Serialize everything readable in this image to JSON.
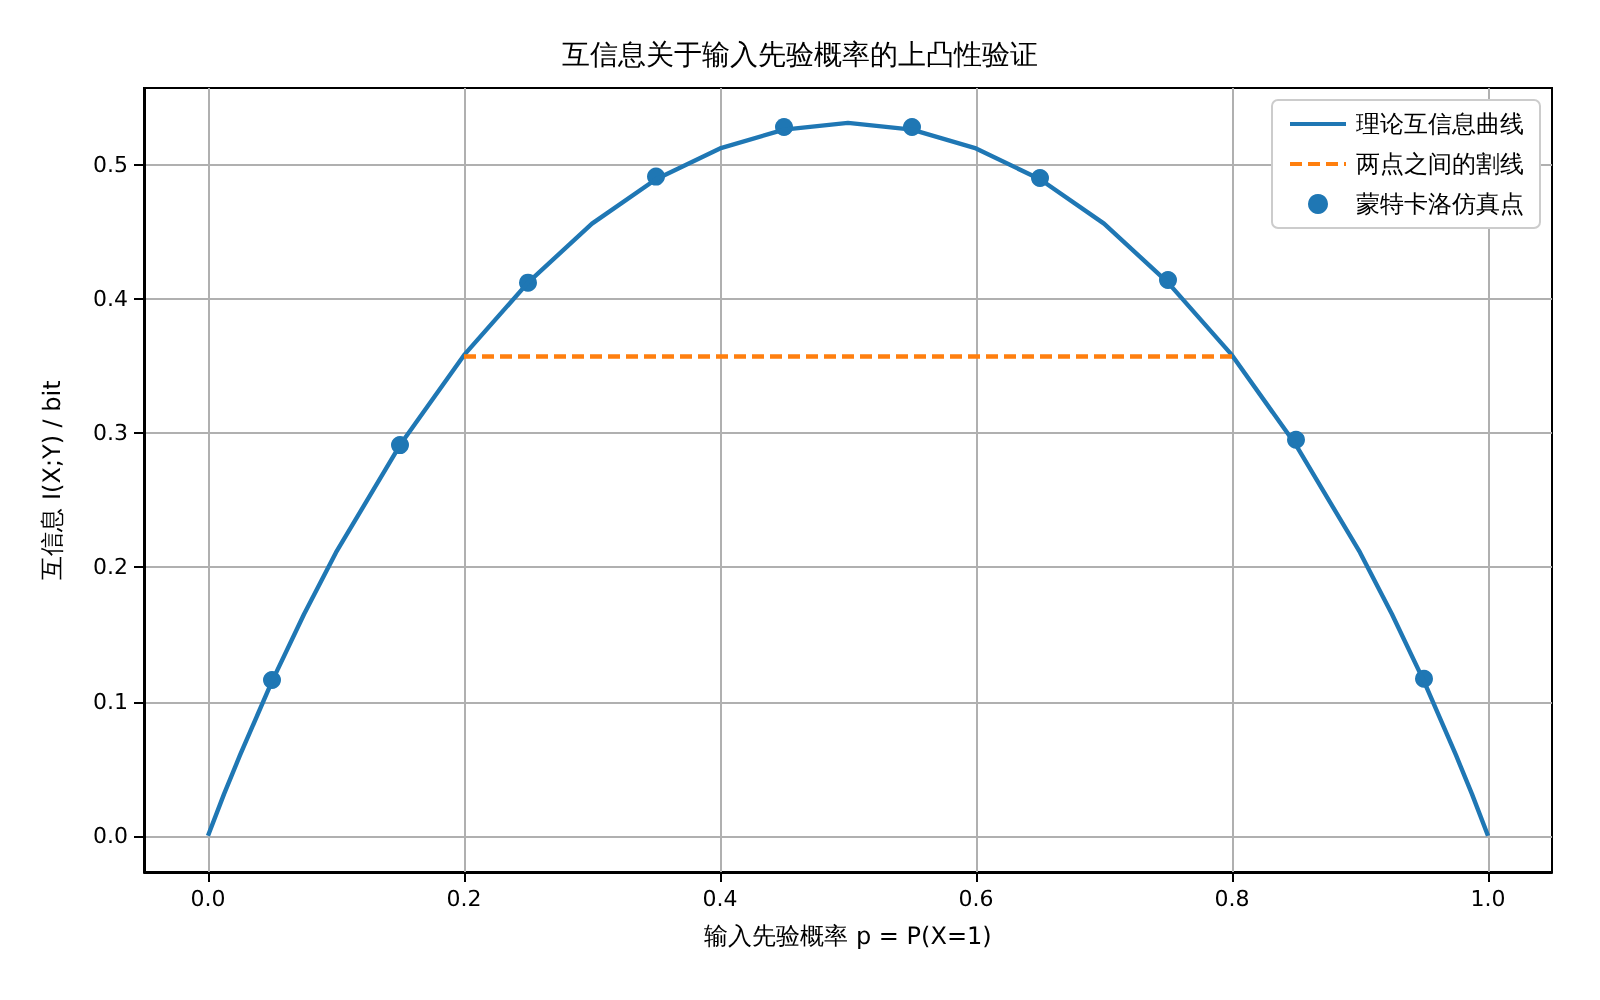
{
  "chart_data": {
    "type": "line",
    "title": "互信息关于输入先验概率的上凸性验证",
    "xlabel": "输入先验概率 p = P(X=1)",
    "ylabel": "互信息 I(X;Y) / bit",
    "series": [
      {
        "name": "理论互信息曲线",
        "color": "#1f77b4",
        "line_style": "solid",
        "marker": "none",
        "x": [
          0,
          0.0125,
          0.025,
          0.05,
          0.075,
          0.1,
          0.15,
          0.2,
          0.25,
          0.3,
          0.35,
          0.4,
          0.45,
          0.5,
          0.55,
          0.6,
          0.65,
          0.7,
          0.75,
          0.8,
          0.85,
          0.9,
          0.925,
          0.95,
          0.975,
          0.9875,
          1
        ],
        "values": [
          0,
          0.031,
          0.06,
          0.115,
          0.165,
          0.211,
          0.291,
          0.358,
          0.412,
          0.456,
          0.489,
          0.512,
          0.526,
          0.531,
          0.526,
          0.512,
          0.489,
          0.456,
          0.412,
          0.358,
          0.291,
          0.211,
          0.165,
          0.115,
          0.06,
          0.031,
          0
        ]
      },
      {
        "name": "两点之间的割线",
        "color": "#ff7f0e",
        "line_style": "dashed",
        "marker": "none",
        "x": [
          0.2,
          0.8
        ],
        "values": [
          0.357,
          0.357
        ]
      },
      {
        "name": "蒙特卡洛仿真点",
        "type": "scatter",
        "color": "#1f77b4",
        "marker": "circle",
        "x": [
          0.05,
          0.15,
          0.25,
          0.35,
          0.45,
          0.55,
          0.65,
          0.75,
          0.85,
          0.95
        ],
        "values": [
          0.116,
          0.291,
          0.412,
          0.491,
          0.528,
          0.528,
          0.49,
          0.414,
          0.295,
          0.117
        ]
      }
    ],
    "xlim": [
      -0.05,
      1.05
    ],
    "ylim": [
      -0.027,
      0.557
    ],
    "xticks": [
      {
        "value": 0,
        "label": "0.0"
      },
      {
        "value": 0.2,
        "label": "0.2"
      },
      {
        "value": 0.4,
        "label": "0.4"
      },
      {
        "value": 0.6,
        "label": "0.6"
      },
      {
        "value": 0.8,
        "label": "0.8"
      },
      {
        "value": 1,
        "label": "1.0"
      }
    ],
    "yticks": [
      {
        "value": 0,
        "label": "0.0"
      },
      {
        "value": 0.1,
        "label": "0.1"
      },
      {
        "value": 0.2,
        "label": "0.2"
      },
      {
        "value": 0.3,
        "label": "0.3"
      },
      {
        "value": 0.4,
        "label": "0.4"
      },
      {
        "value": 0.5,
        "label": "0.5"
      }
    ],
    "grid": true,
    "legend": "top right"
  }
}
